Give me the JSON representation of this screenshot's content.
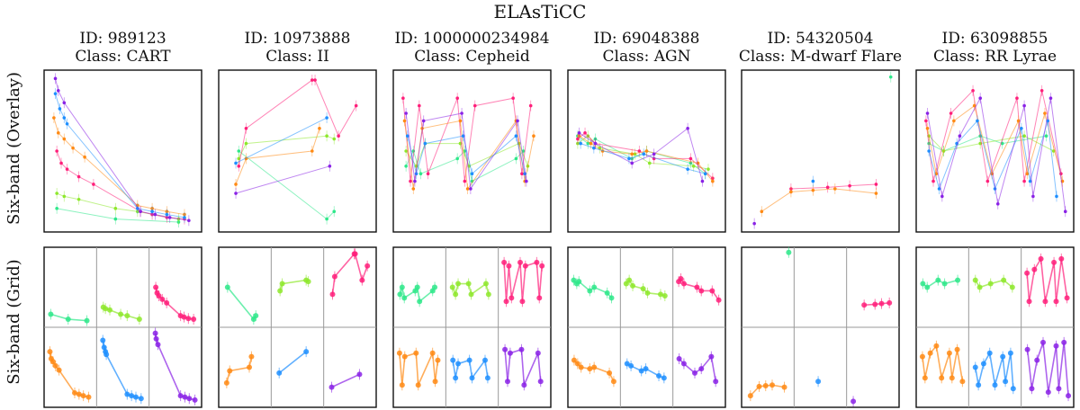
{
  "figure_title": "ELAsTiCC",
  "row_labels": [
    "Six-band (Overlay)",
    "Six-band (Grid)"
  ],
  "band_colors": [
    "#2ee88a",
    "#8ee82c",
    "#ff1f7a",
    "#ff8a14",
    "#1e8fff",
    "#8a22e6"
  ],
  "chart_data": [
    {
      "type": "scatter",
      "id_label": "ID: 989123",
      "class_label": "Class: CART",
      "series": [
        {
          "name": "band1",
          "x": [
            5,
            45,
            88
          ],
          "y": [
            0.12,
            0.05,
            0.03
          ]
        },
        {
          "name": "band2",
          "x": [
            5,
            10,
            20,
            45,
            60,
            88
          ],
          "y": [
            0.22,
            0.2,
            0.18,
            0.12,
            0.1,
            0.05
          ]
        },
        {
          "name": "band3",
          "x": [
            5,
            8,
            12,
            20,
            30,
            62,
            70,
            80,
            92
          ],
          "y": [
            0.5,
            0.42,
            0.38,
            0.33,
            0.28,
            0.1,
            0.08,
            0.06,
            0.05
          ]
        },
        {
          "name": "band4",
          "x": [
            3,
            6,
            10,
            16,
            24,
            60,
            70,
            80,
            92
          ],
          "y": [
            0.72,
            0.62,
            0.58,
            0.52,
            0.46,
            0.14,
            0.12,
            0.1,
            0.08
          ]
        },
        {
          "name": "band5",
          "x": [
            4,
            7,
            10,
            12,
            60,
            70,
            80,
            92
          ],
          "y": [
            0.88,
            0.78,
            0.72,
            0.68,
            0.12,
            0.1,
            0.08,
            0.06
          ]
        },
        {
          "name": "band6",
          "x": [
            4,
            6,
            10,
            62,
            72,
            82,
            95
          ],
          "y": [
            0.98,
            0.9,
            0.82,
            0.1,
            0.08,
            0.06,
            0.04
          ]
        }
      ]
    },
    {
      "type": "scatter",
      "id_label": "ID: 10973888",
      "class_label": "Class: II",
      "series": [
        {
          "name": "band1",
          "x": [
            10,
            70,
            75
          ],
          "y": [
            0.5,
            0.05,
            0.1
          ]
        },
        {
          "name": "band2",
          "x": [
            10,
            15,
            70,
            75
          ],
          "y": [
            0.45,
            0.55,
            0.6,
            0.58
          ]
        },
        {
          "name": "band3",
          "x": [
            10,
            15,
            60,
            62,
            78,
            90
          ],
          "y": [
            0.4,
            0.65,
            0.97,
            0.97,
            0.6,
            0.8
          ]
        },
        {
          "name": "band4",
          "x": [
            8,
            15,
            60,
            65
          ],
          "y": [
            0.28,
            0.45,
            0.5,
            0.65
          ]
        },
        {
          "name": "band5",
          "x": [
            8,
            70
          ],
          "y": [
            0.42,
            0.72
          ]
        },
        {
          "name": "band6",
          "x": [
            8,
            72
          ],
          "y": [
            0.22,
            0.4
          ]
        }
      ]
    },
    {
      "type": "scatter",
      "id_label": "ID: 1000000234984",
      "class_label": "Class: Cepheid",
      "series": [
        {
          "name": "band1",
          "x": [
            5,
            10,
            15,
            40,
            45,
            50,
            80,
            85
          ],
          "y": [
            0.4,
            0.5,
            0.35,
            0.45,
            0.5,
            0.3,
            0.45,
            0.5
          ]
        },
        {
          "name": "band2",
          "x": [
            5,
            12,
            18,
            42,
            48,
            82,
            88
          ],
          "y": [
            0.5,
            0.4,
            0.55,
            0.55,
            0.4,
            0.55,
            0.4
          ]
        },
        {
          "name": "band3",
          "x": [
            3,
            8,
            14,
            20,
            40,
            45,
            52,
            78,
            84,
            90
          ],
          "y": [
            0.85,
            0.3,
            0.8,
            0.35,
            0.85,
            0.3,
            0.8,
            0.85,
            0.35,
            0.8
          ]
        },
        {
          "name": "band4",
          "x": [
            4,
            10,
            16,
            42,
            47,
            80,
            86,
            92
          ],
          "y": [
            0.7,
            0.25,
            0.65,
            0.7,
            0.25,
            0.7,
            0.3,
            0.6
          ]
        },
        {
          "name": "band5",
          "x": [
            6,
            12,
            18,
            44,
            50,
            80,
            86
          ],
          "y": [
            0.6,
            0.35,
            0.55,
            0.6,
            0.35,
            0.6,
            0.35
          ]
        },
        {
          "name": "band6",
          "x": [
            5,
            11,
            17,
            43,
            49,
            81,
            87
          ],
          "y": [
            0.75,
            0.3,
            0.7,
            0.75,
            0.25,
            0.7,
            0.3
          ]
        }
      ]
    },
    {
      "type": "scatter",
      "id_label": "ID: 69048388",
      "class_label": "Class: AGN",
      "series": [
        {
          "name": "band1",
          "x": [
            3,
            10,
            15,
            40,
            50,
            80,
            90
          ],
          "y": [
            0.6,
            0.55,
            0.58,
            0.45,
            0.5,
            0.42,
            0.35
          ]
        },
        {
          "name": "band2",
          "x": [
            3,
            10,
            18,
            42,
            52,
            82,
            92
          ],
          "y": [
            0.55,
            0.6,
            0.52,
            0.48,
            0.42,
            0.4,
            0.38
          ]
        },
        {
          "name": "band3",
          "x": [
            3,
            8,
            15,
            45,
            55,
            80,
            95
          ],
          "y": [
            0.58,
            0.62,
            0.55,
            0.5,
            0.45,
            0.45,
            0.32
          ]
        },
        {
          "name": "band4",
          "x": [
            4,
            12,
            20,
            40,
            50,
            85,
            95
          ],
          "y": [
            0.6,
            0.55,
            0.5,
            0.48,
            0.5,
            0.42,
            0.3
          ]
        },
        {
          "name": "band5",
          "x": [
            5,
            14,
            38,
            48,
            78,
            90
          ],
          "y": [
            0.55,
            0.52,
            0.45,
            0.48,
            0.38,
            0.35
          ]
        },
        {
          "name": "band6",
          "x": [
            4,
            15,
            40,
            55,
            78,
            88
          ],
          "y": [
            0.62,
            0.55,
            0.42,
            0.48,
            0.65,
            0.3
          ]
        }
      ]
    },
    {
      "type": "scatter",
      "id_label": "ID: 54320504",
      "class_label": "Class: M-dwarf Flare",
      "series": [
        {
          "name": "band1",
          "x": [
            98
          ],
          "y": [
            0.99
          ]
        },
        {
          "name": "band3",
          "x": [
            30,
            55,
            70,
            88
          ],
          "y": [
            0.25,
            0.26,
            0.27,
            0.28
          ]
        },
        {
          "name": "band4",
          "x": [
            10,
            30,
            45,
            60,
            88
          ],
          "y": [
            0.1,
            0.23,
            0.24,
            0.25,
            0.22
          ]
        },
        {
          "name": "band5",
          "x": [
            45
          ],
          "y": [
            0.3
          ]
        },
        {
          "name": "band6",
          "x": [
            5
          ],
          "y": [
            0.02
          ]
        }
      ]
    },
    {
      "type": "scatter",
      "id_label": "ID: 63098855",
      "class_label": "Class: RR Lyrae",
      "series": [
        {
          "name": "band1",
          "x": [
            5,
            15,
            40,
            55,
            85
          ],
          "y": [
            0.55,
            0.5,
            0.6,
            0.55,
            0.6
          ]
        },
        {
          "name": "band2",
          "x": [
            5,
            15,
            40,
            70,
            90
          ],
          "y": [
            0.6,
            0.5,
            0.55,
            0.6,
            0.5
          ]
        },
        {
          "name": "band3",
          "x": [
            3,
            8,
            20,
            35,
            45,
            65,
            70,
            82,
            95
          ],
          "y": [
            0.7,
            0.3,
            0.75,
            0.9,
            0.3,
            0.85,
            0.3,
            0.9,
            0.35
          ]
        },
        {
          "name": "band4",
          "x": [
            4,
            10,
            22,
            36,
            48,
            66,
            72,
            84,
            96
          ],
          "y": [
            0.65,
            0.35,
            0.7,
            0.8,
            0.35,
            0.7,
            0.35,
            0.75,
            0.3
          ]
        },
        {
          "name": "band5",
          "x": [
            5,
            12,
            24,
            38,
            50,
            68,
            74,
            86,
            92
          ],
          "y": [
            0.5,
            0.25,
            0.55,
            0.7,
            0.25,
            0.65,
            0.3,
            0.7,
            0.2
          ]
        },
        {
          "name": "band6",
          "x": [
            4,
            14,
            26,
            40,
            52,
            70,
            76,
            88,
            98
          ],
          "y": [
            0.75,
            0.2,
            0.6,
            0.85,
            0.15,
            0.8,
            0.2,
            0.85,
            0.1
          ]
        }
      ]
    }
  ]
}
